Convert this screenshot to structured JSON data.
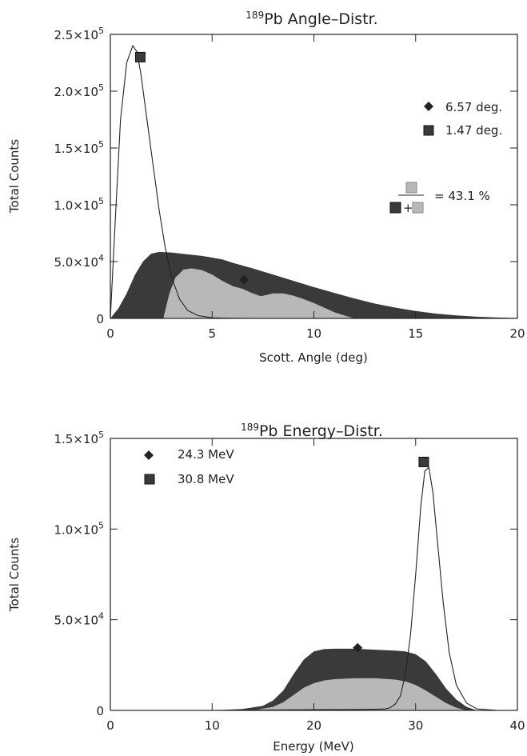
{
  "chart_data": [
    {
      "type": "area",
      "title_sup": "189",
      "title": "Pb Angle–Distr.",
      "xlabel": "Scott. Angle (deg)",
      "ylabel": "Total Counts",
      "xlim": [
        0,
        20
      ],
      "ylim": [
        0,
        250000
      ],
      "xticks": [
        0,
        5,
        10,
        15,
        20
      ],
      "xtick_labels": [
        "0",
        "5",
        "10",
        "15",
        "20"
      ],
      "yticks": [
        0,
        50000,
        100000,
        150000,
        200000,
        250000
      ],
      "ytick_labels": [
        {
          "mant": "0",
          "exp": ""
        },
        {
          "mant": "5.0×10",
          "exp": "4"
        },
        {
          "mant": "1.0×10",
          "exp": "5"
        },
        {
          "mant": "1.5×10",
          "exp": "5"
        },
        {
          "mant": "2.0×10",
          "exp": "5"
        },
        {
          "mant": "2.5×10",
          "exp": "5"
        }
      ],
      "colors": {
        "dark": "#3a3a3a",
        "light": "#b8b8b8",
        "line": "#222222"
      },
      "series": [
        {
          "style": "dark-area",
          "x": [
            0,
            0.4,
            0.8,
            1.2,
            1.6,
            2.0,
            2.4,
            3.0,
            3.5,
            4.0,
            4.5,
            5.0,
            5.5,
            6.0,
            7.0,
            8.0,
            9.0,
            10.0,
            11.0,
            12.0,
            13.0,
            14.0,
            15.0,
            16.0,
            17.0,
            18.0,
            19.0,
            20.0
          ],
          "y": [
            0,
            9000,
            22000,
            38000,
            50000,
            57000,
            58500,
            58000,
            57000,
            56000,
            55000,
            53500,
            52000,
            49000,
            44000,
            38500,
            33000,
            27500,
            22500,
            17500,
            13000,
            9500,
            6500,
            4200,
            2600,
            1500,
            800,
            300
          ]
        },
        {
          "style": "light-area",
          "x": [
            2.6,
            2.9,
            3.2,
            3.6,
            4.0,
            4.5,
            5.0,
            5.5,
            6.0,
            6.5,
            7.0,
            7.4,
            8.0,
            8.5,
            9.0,
            9.5,
            10.0,
            10.5,
            11.0,
            11.5,
            12.0
          ],
          "y": [
            0,
            22000,
            36000,
            43000,
            44000,
            42500,
            38500,
            33000,
            28500,
            26000,
            22000,
            19500,
            22000,
            22000,
            20000,
            17000,
            13500,
            9500,
            5500,
            2500,
            0
          ]
        },
        {
          "style": "line",
          "x": [
            0,
            0.25,
            0.5,
            0.8,
            1.1,
            1.3,
            1.5,
            1.8,
            2.1,
            2.4,
            2.7,
            3.0,
            3.4,
            3.8,
            4.3,
            5.0,
            6.0,
            7.0
          ],
          "y": [
            0,
            90000,
            175000,
            225000,
            240000,
            235000,
            215000,
            175000,
            135000,
            95000,
            62000,
            37000,
            17000,
            7000,
            2500,
            500,
            80,
            0
          ]
        }
      ],
      "markers": [
        {
          "shape": "diamond",
          "x": 6.57,
          "y": 34000
        },
        {
          "shape": "square-dark",
          "x": 1.47,
          "y": 230000
        }
      ],
      "legend": [
        {
          "shape": "diamond",
          "label": "6.57 deg."
        },
        {
          "shape": "square-dark",
          "label": "1.47 deg."
        }
      ],
      "ratio": {
        "plus": "+",
        "text": "= 43.1 %"
      }
    },
    {
      "type": "area",
      "title_sup": "189",
      "title": "Pb Energy–Distr.",
      "xlabel": "Energy (MeV)",
      "ylabel": "Total Counts",
      "xlim": [
        0,
        40
      ],
      "ylim": [
        0,
        150000
      ],
      "xticks": [
        0,
        10,
        20,
        30,
        40
      ],
      "xtick_labels": [
        "0",
        "10",
        "20",
        "30",
        "40"
      ],
      "yticks": [
        0,
        50000,
        100000,
        150000
      ],
      "ytick_labels": [
        {
          "mant": "0",
          "exp": ""
        },
        {
          "mant": "5.0×10",
          "exp": "4"
        },
        {
          "mant": "1.0×10",
          "exp": "5"
        },
        {
          "mant": "1.5×10",
          "exp": "5"
        }
      ],
      "colors": {
        "dark": "#3a3a3a",
        "light": "#b8b8b8",
        "line": "#222222"
      },
      "series": [
        {
          "style": "dark-area",
          "x": [
            10,
            13,
            15,
            16,
            17,
            18,
            19,
            20,
            21,
            22,
            24,
            26,
            28,
            29,
            30,
            31,
            32,
            33,
            34,
            35,
            36
          ],
          "y": [
            0,
            800,
            2500,
            5500,
            11000,
            20000,
            28000,
            32500,
            33800,
            34000,
            34000,
            33500,
            33000,
            32500,
            31000,
            27000,
            20000,
            12000,
            6000,
            2000,
            0
          ]
        },
        {
          "style": "light-area",
          "x": [
            14,
            16,
            17,
            18,
            19,
            20,
            21,
            22,
            24,
            26,
            28,
            29,
            30,
            31,
            32,
            33,
            34,
            35
          ],
          "y": [
            0,
            2000,
            4500,
            8500,
            12500,
            15000,
            16500,
            17200,
            17800,
            17800,
            17000,
            16000,
            14000,
            11000,
            7500,
            4000,
            1500,
            0
          ]
        },
        {
          "style": "line",
          "x": [
            10,
            15,
            20,
            24,
            26,
            27,
            27.5,
            28,
            28.5,
            29,
            29.5,
            30,
            30.5,
            30.9,
            31.3,
            31.7,
            32.2,
            32.7,
            33.3,
            34,
            35,
            36,
            38
          ],
          "y": [
            0,
            200,
            400,
            500,
            600,
            800,
            1500,
            3500,
            8000,
            20000,
            42000,
            75000,
            112000,
            132000,
            134000,
            120000,
            90000,
            60000,
            32000,
            14000,
            4000,
            900,
            0
          ]
        }
      ],
      "markers": [
        {
          "shape": "diamond",
          "x": 24.3,
          "y": 34500
        },
        {
          "shape": "square-dark",
          "x": 30.8,
          "y": 137000
        }
      ],
      "legend": [
        {
          "shape": "diamond",
          "label": "24.3 MeV"
        },
        {
          "shape": "square-dark",
          "label": "30.8 MeV"
        }
      ]
    }
  ]
}
